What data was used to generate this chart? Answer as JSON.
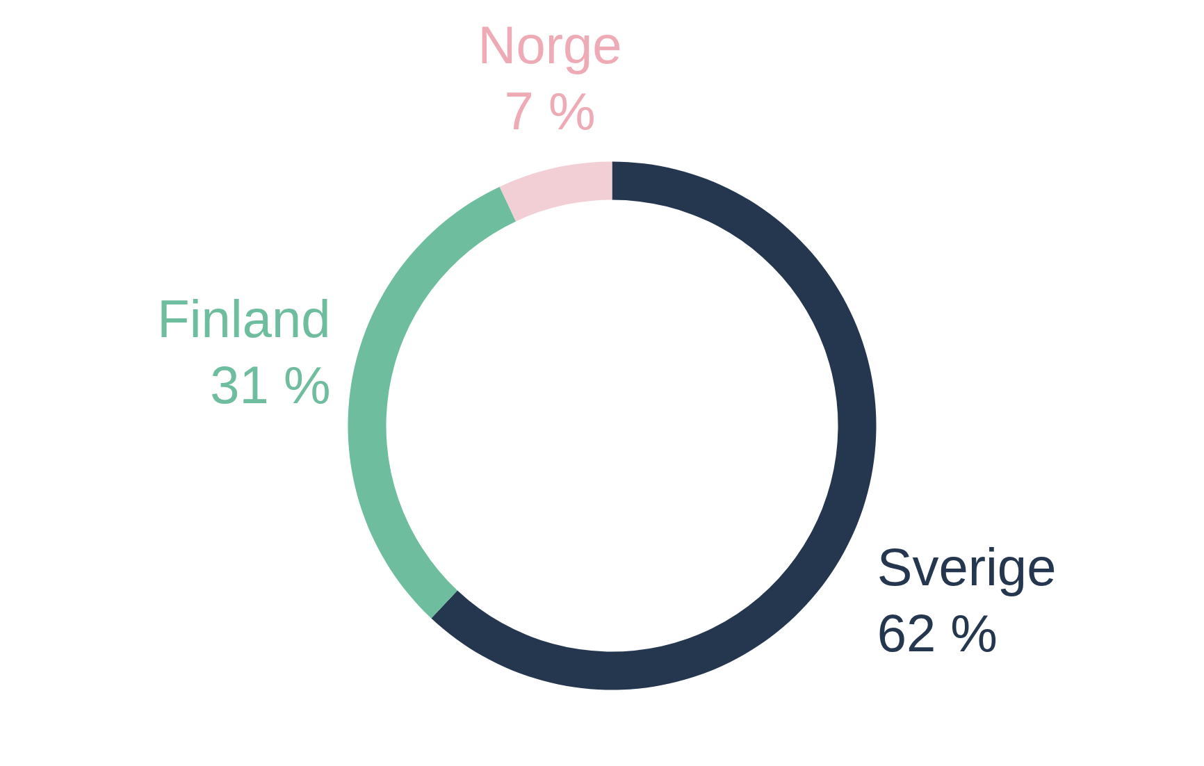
{
  "chart_data": {
    "type": "donut",
    "categories": [
      "Sverige",
      "Finland",
      "Norge"
    ],
    "values": [
      62,
      31,
      7
    ],
    "colors": [
      "#25364f",
      "#6fbd9f",
      "#f2cfd4"
    ],
    "value_labels": [
      "62 %",
      "31 %",
      "7 %"
    ]
  }
}
